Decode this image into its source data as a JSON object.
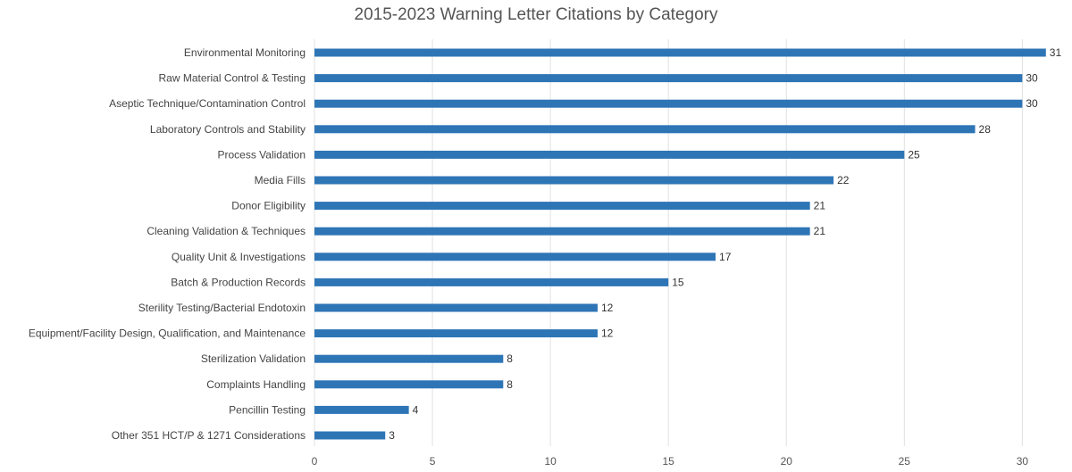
{
  "chart_data": {
    "type": "bar",
    "orientation": "horizontal",
    "title": "2015-2023 Warning Letter Citations by Category",
    "xlabel": "",
    "ylabel": "",
    "xlim": [
      0,
      31.5
    ],
    "xticks": [
      0,
      5,
      10,
      15,
      20,
      25,
      30
    ],
    "grid": "vertical",
    "bar_color": "#2E75B6",
    "grid_color": "#E0E0E0",
    "categories": [
      "Environmental Monitoring",
      "Raw Material Control & Testing",
      "Aseptic Technique/Contamination Control",
      "Laboratory Controls and Stability",
      "Process Validation",
      "Media Fills",
      "Donor Eligibility",
      "Cleaning Validation & Techniques",
      "Quality Unit & Investigations",
      "Batch & Production Records",
      "Sterility Testing/Bacterial Endotoxin",
      "Equipment/Facility Design, Qualification, and Maintenance",
      "Sterilization Validation",
      "Complaints Handling",
      "Pencillin Testing",
      "Other 351 HCT/P & 1271 Considerations"
    ],
    "values": [
      31,
      30,
      30,
      28,
      25,
      22,
      21,
      21,
      17,
      15,
      12,
      12,
      8,
      8,
      4,
      3
    ]
  }
}
